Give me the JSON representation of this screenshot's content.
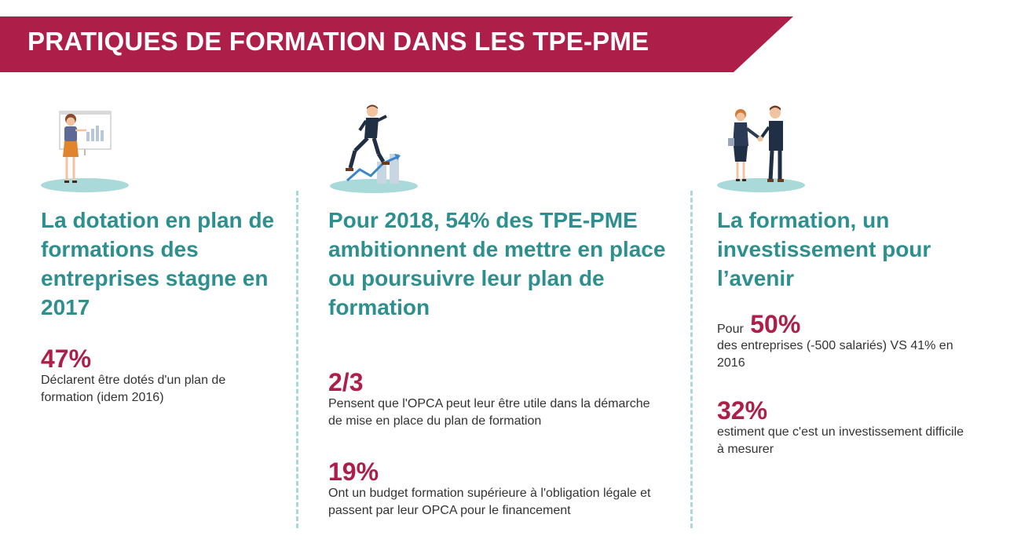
{
  "banner": {
    "title": "PRATIQUES DE FORMATION DANS LES TPE-PME"
  },
  "colors": {
    "accent": "#ad1e48",
    "teal": "#2e8f8f",
    "divider": "#a9d9d9"
  },
  "columns": [
    {
      "illustration": "woman-presenting-chart-illustration",
      "heading": "La dotation en plan de formations des entreprises stagne en 2017",
      "stats": [
        {
          "value": "47%",
          "text": "Déclarent être dotés d'un plan de formation (idem 2016)"
        }
      ]
    },
    {
      "illustration": "man-climbing-growth-chart-illustration",
      "heading": "Pour 2018, 54% des TPE-PME ambitionnent de mettre en place ou poursuivre leur plan de formation",
      "stats": [
        {
          "value": "2/3",
          "text": "Pensent que l'OPCA peut leur être utile dans la démarche de mise en place du plan de formation"
        },
        {
          "value": "19%",
          "text": "Ont un budget formation supérieure à l'obligation légale et passent par leur OPCA pour le financement"
        }
      ]
    },
    {
      "illustration": "handshake-illustration",
      "heading": "La formation, un investissement pour l’avenir",
      "stats": [
        {
          "prefix": "Pour",
          "value": "50%",
          "text": "des entreprises (-500 salariés) VS 41% en 2016"
        },
        {
          "value": "32%",
          "text": "estiment que c'est un investissement difficile à mesurer"
        }
      ]
    }
  ]
}
